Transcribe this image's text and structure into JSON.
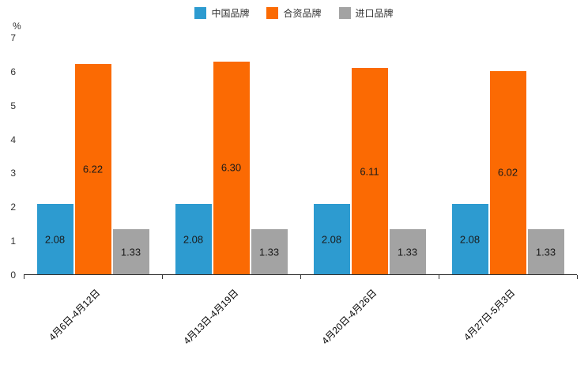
{
  "chart_data": {
    "type": "bar",
    "title": "",
    "unit_label": "%",
    "categories": [
      "4月6日-4月12日",
      "4月13日-4月19日",
      "4月20日-4月26日",
      "4月27日-5月3日"
    ],
    "series": [
      {
        "name": "中国品牌",
        "color": "#2d9bd0",
        "values": [
          2.08,
          2.08,
          2.08,
          2.08
        ]
      },
      {
        "name": "合资品牌",
        "color": "#fb6a03",
        "values": [
          6.22,
          6.3,
          6.11,
          6.02
        ]
      },
      {
        "name": "进口品牌",
        "color": "#a3a3a3",
        "values": [
          1.33,
          1.33,
          1.33,
          1.33
        ]
      }
    ],
    "ylim": [
      0,
      7
    ],
    "y_ticks": [
      0,
      1,
      2,
      3,
      4,
      5,
      6,
      7
    ],
    "legend_position": "top",
    "grid": false,
    "value_labels": "inside-center",
    "value_label_decimals": 2
  }
}
